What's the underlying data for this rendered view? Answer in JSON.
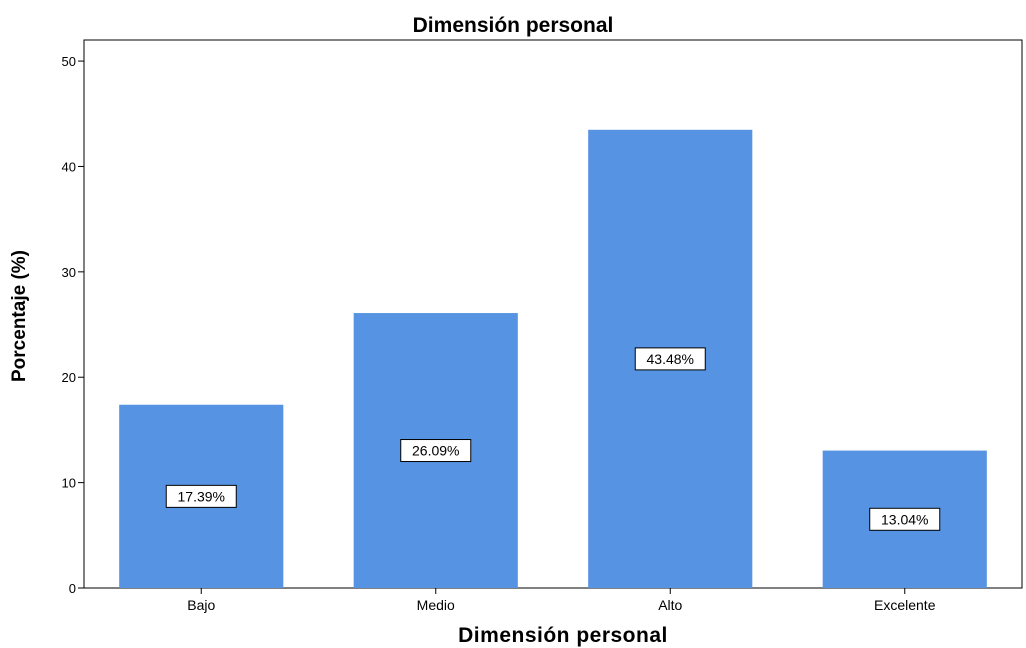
{
  "chart_data": {
    "type": "bar",
    "title": "Dimensión personal",
    "xlabel": "Dimensión personal",
    "ylabel": "Porcentaje (%)",
    "categories": [
      "Bajo",
      "Medio",
      "Alto",
      "Excelente"
    ],
    "values": [
      17.39,
      26.09,
      43.48,
      13.04
    ],
    "data_labels": [
      "17.39%",
      "26.09%",
      "43.48%",
      "13.04%"
    ],
    "ylim": [
      0,
      52
    ],
    "yticks": [
      0,
      10,
      20,
      30,
      40,
      50
    ],
    "bar_color": "#5694e3",
    "grid": false,
    "legend": "none"
  }
}
